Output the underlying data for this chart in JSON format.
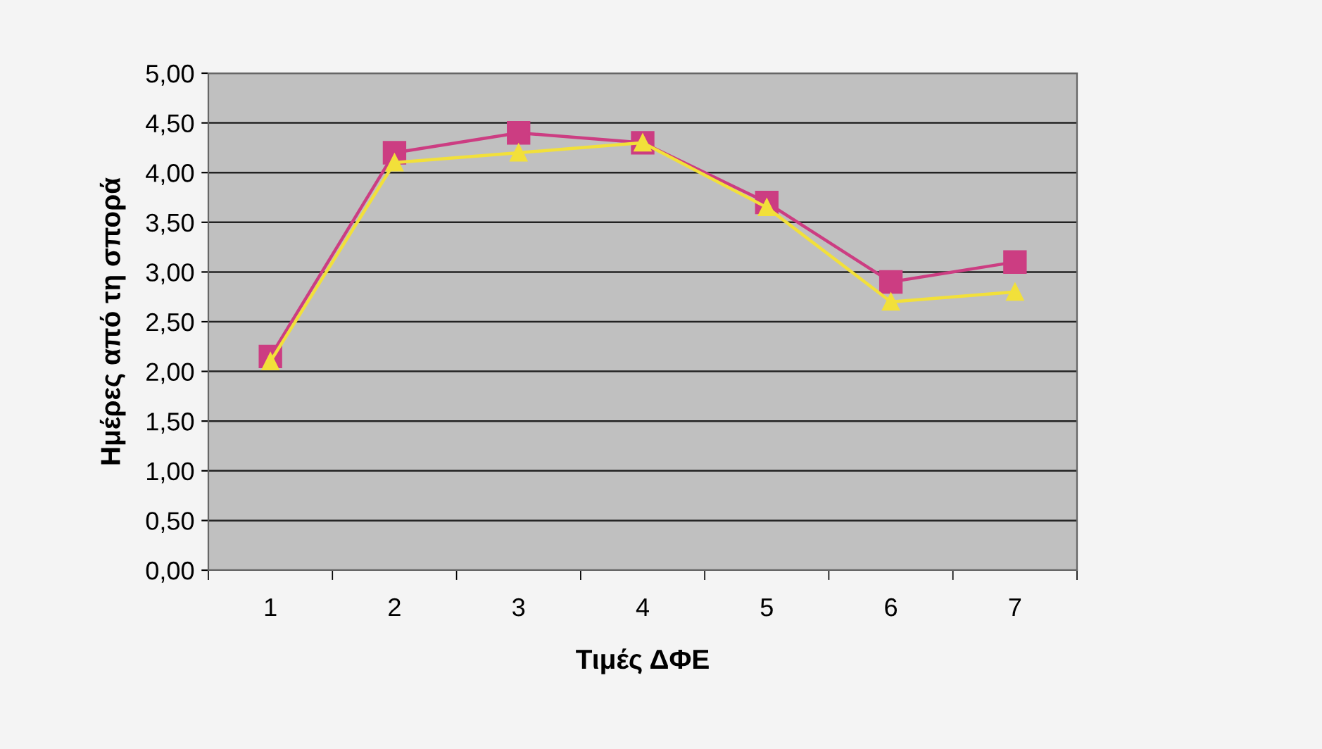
{
  "chart_data": {
    "type": "line",
    "xlabel": "Τιμές ΔΦΕ",
    "ylabel": "Ημέρες από τη σπορά",
    "categories": [
      "1",
      "2",
      "3",
      "4",
      "5",
      "6",
      "7"
    ],
    "series": [
      {
        "color": "#cc3d82",
        "marker": "square",
        "values": [
          2.15,
          4.2,
          4.4,
          4.3,
          3.7,
          2.9,
          3.1
        ]
      },
      {
        "color": "#f2e03a",
        "marker": "triangle",
        "values": [
          2.1,
          4.1,
          4.2,
          4.3,
          3.65,
          2.7,
          2.8
        ]
      }
    ],
    "ylim": [
      0,
      5
    ],
    "yticks": [
      {
        "value": 0,
        "label": "0,00"
      },
      {
        "value": 0.5,
        "label": "0,50"
      },
      {
        "value": 1,
        "label": "1,00"
      },
      {
        "value": 1.5,
        "label": "1,50"
      },
      {
        "value": 2,
        "label": "2,00"
      },
      {
        "value": 2.5,
        "label": "2,50"
      },
      {
        "value": 3,
        "label": "3,00"
      },
      {
        "value": 3.5,
        "label": "3,50"
      },
      {
        "value": 4,
        "label": "4,00"
      },
      {
        "value": 4.5,
        "label": "4,50"
      },
      {
        "value": 5,
        "label": "5,00"
      }
    ],
    "grid": "y",
    "legend": false
  }
}
